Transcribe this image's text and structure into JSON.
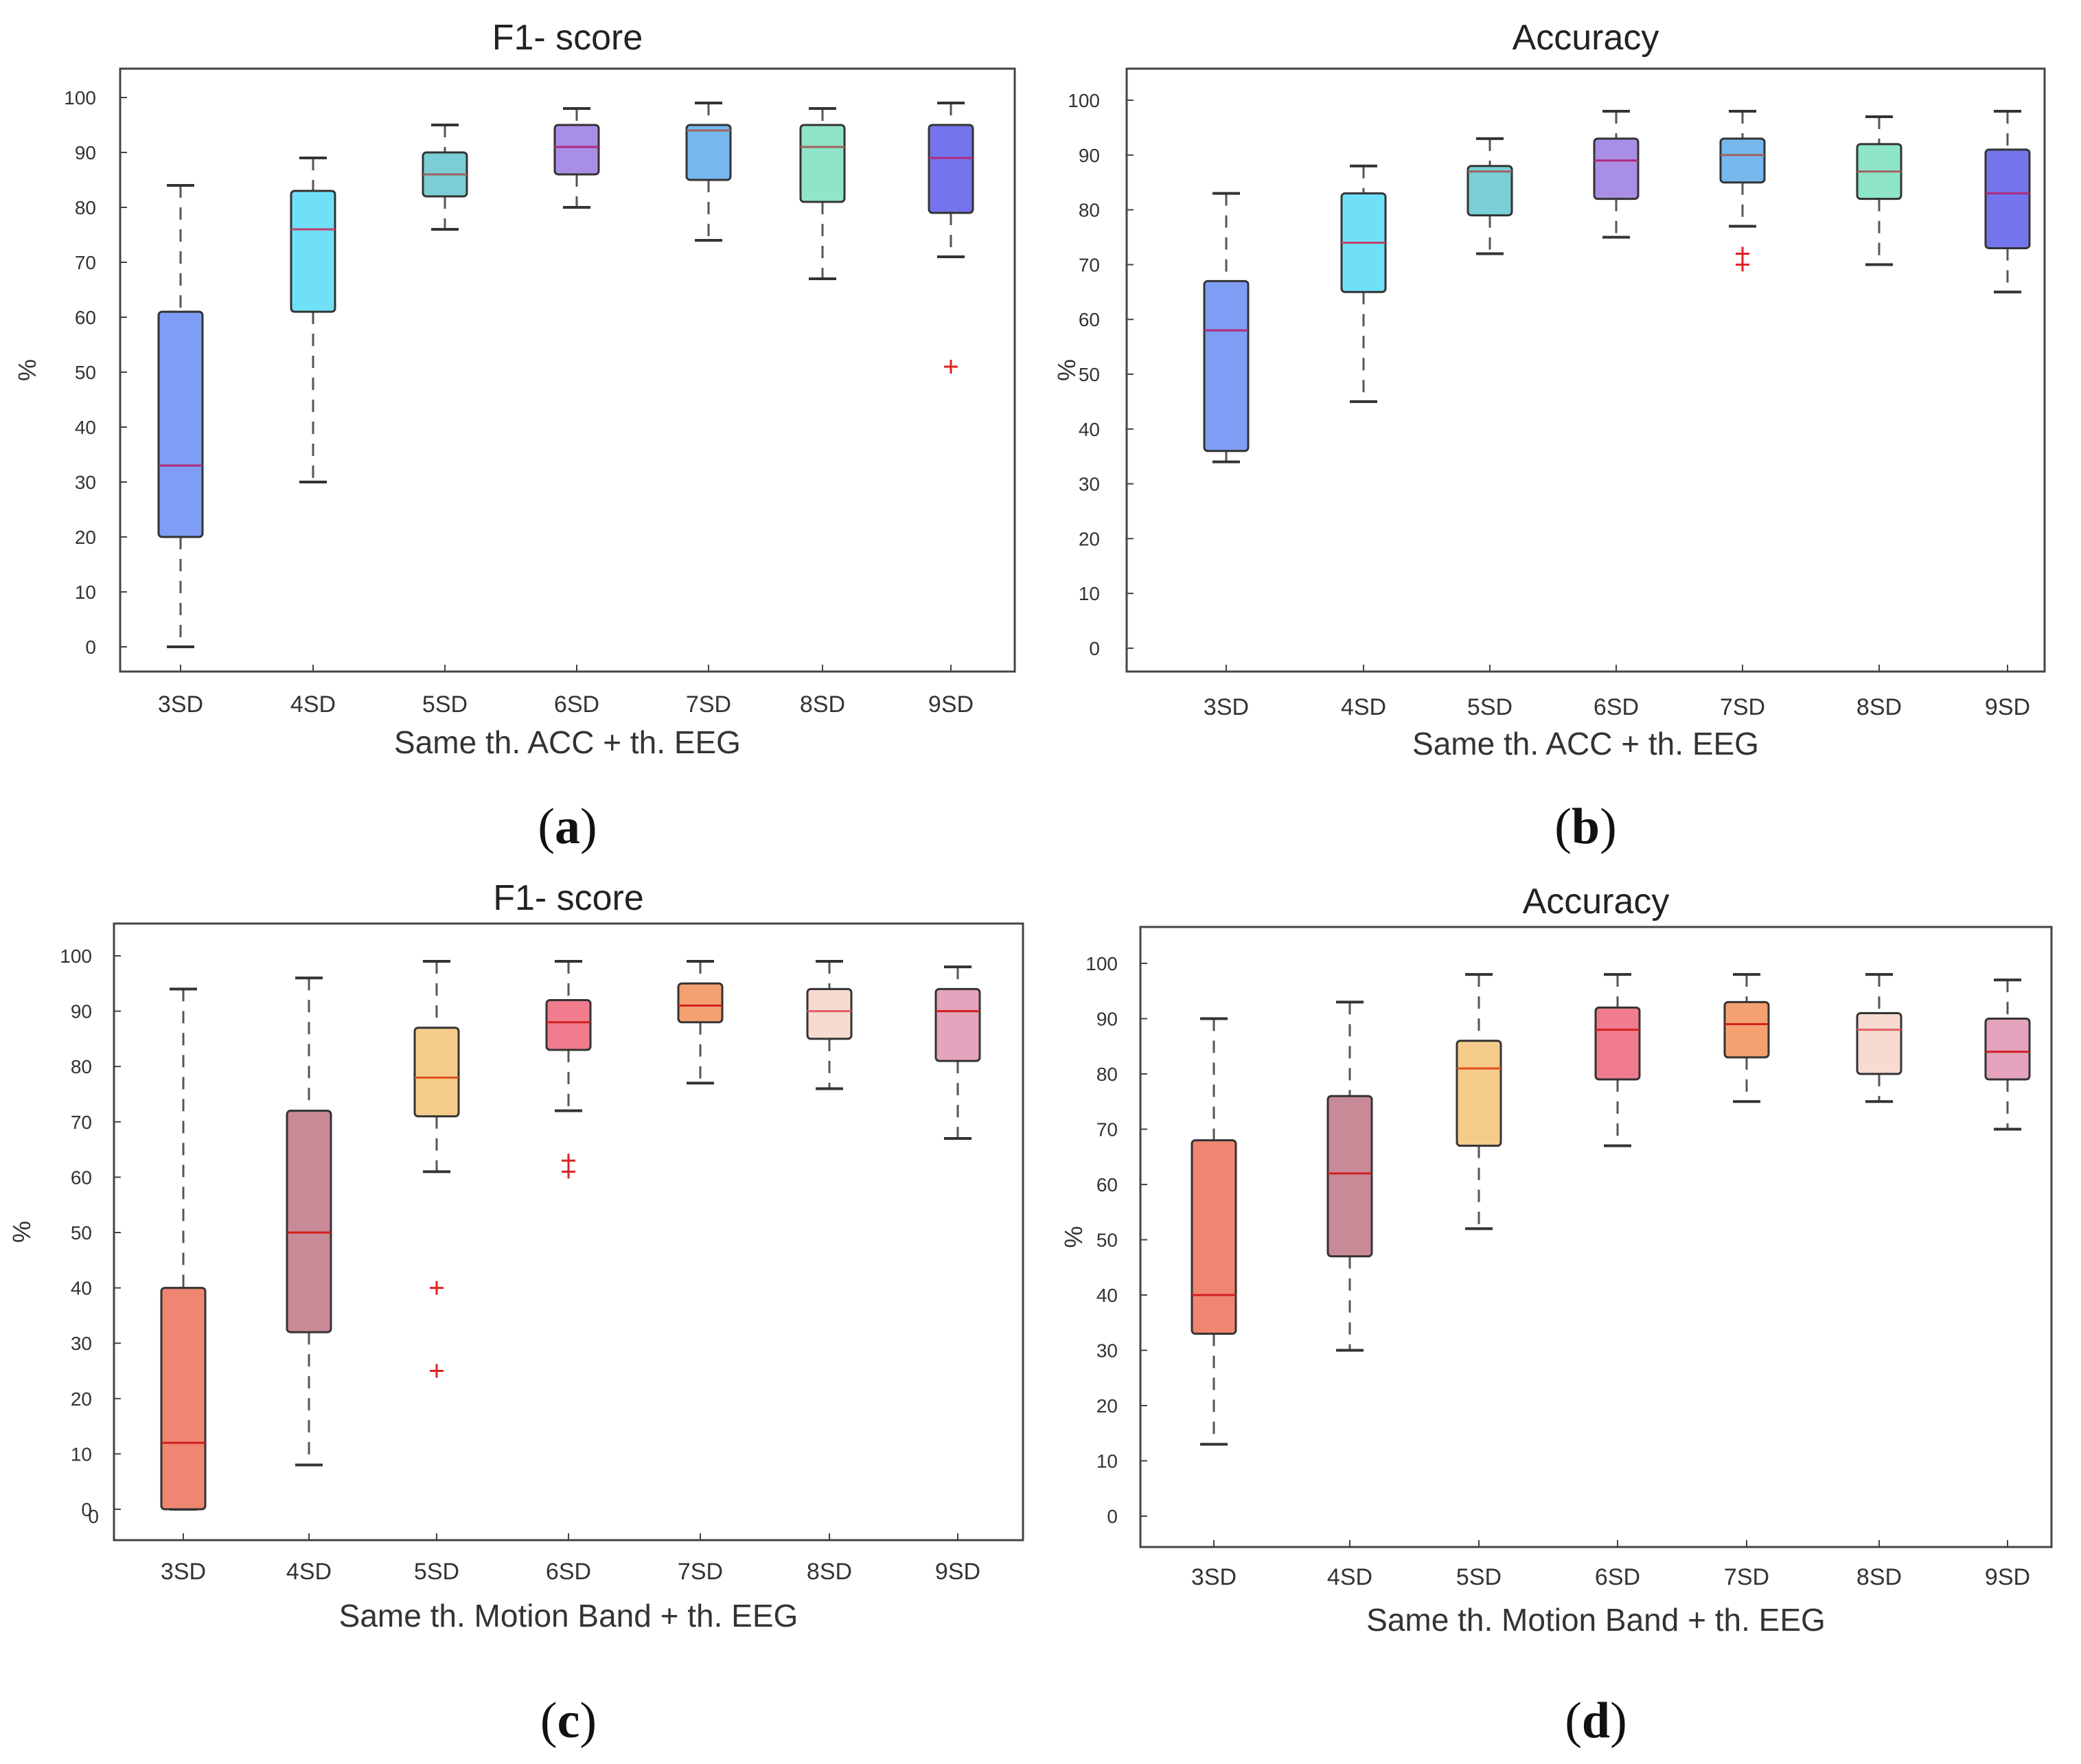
{
  "chart_data": [
    {
      "type": "box",
      "panel": "a",
      "title": "F1- score",
      "xlabel": "Same th. ACC + th. EEG",
      "ylabel": "%",
      "ylim": [
        -4,
        104
      ],
      "yticks": [
        0,
        10,
        20,
        30,
        40,
        50,
        60,
        70,
        80,
        90,
        100
      ],
      "categories": [
        "3SD",
        "4SD",
        "5SD",
        "6SD",
        "7SD",
        "8SD",
        "9SD"
      ],
      "boxes": [
        {
          "min": 0,
          "q1": 20,
          "median": 33,
          "q3": 61,
          "max": 84,
          "outliers": [],
          "color": "#7f9df5",
          "median_color": "#b02a7a"
        },
        {
          "min": 30,
          "q1": 61,
          "median": 76,
          "q3": 83,
          "max": 89,
          "outliers": [],
          "color": "#6fe0f7",
          "median_color": "#c1406a"
        },
        {
          "min": 76,
          "q1": 82,
          "median": 86,
          "q3": 90,
          "max": 95,
          "outliers": [],
          "color": "#79cfd5",
          "median_color": "#a06060"
        },
        {
          "min": 80,
          "q1": 86,
          "median": 91,
          "q3": 95,
          "max": 98,
          "outliers": [],
          "color": "#a98ee6",
          "median_color": "#b02a7a"
        },
        {
          "min": 74,
          "q1": 85,
          "median": 94,
          "q3": 95,
          "max": 99,
          "outliers": [],
          "color": "#76b7ee",
          "median_color": "#a06060"
        },
        {
          "min": 67,
          "q1": 81,
          "median": 91,
          "q3": 95,
          "max": 98,
          "outliers": [],
          "color": "#8fe5c7",
          "median_color": "#a06060"
        },
        {
          "min": 71,
          "q1": 79,
          "median": 89,
          "q3": 95,
          "max": 99,
          "outliers": [
            51
          ],
          "color": "#7474ec",
          "median_color": "#b02a7a"
        }
      ]
    },
    {
      "type": "box",
      "panel": "b",
      "title": "Accuracy",
      "xlabel": "Same th. ACC + th. EEG",
      "ylabel": "%",
      "ylim": [
        -4,
        104
      ],
      "yticks": [
        0,
        10,
        20,
        30,
        40,
        50,
        60,
        70,
        80,
        90,
        100
      ],
      "categories": [
        "3SD",
        "4SD",
        "5SD",
        "6SD",
        "7SD",
        "8SD",
        "9SD"
      ],
      "boxes": [
        {
          "min": 34,
          "q1": 36,
          "median": 58,
          "q3": 67,
          "max": 83,
          "outliers": [],
          "color": "#7f9df5",
          "median_color": "#b02a7a"
        },
        {
          "min": 45,
          "q1": 65,
          "median": 74,
          "q3": 83,
          "max": 88,
          "outliers": [],
          "color": "#6fe0f7",
          "median_color": "#c1406a"
        },
        {
          "min": 72,
          "q1": 79,
          "median": 87,
          "q3": 88,
          "max": 93,
          "outliers": [],
          "color": "#79cfd5",
          "median_color": "#a06060"
        },
        {
          "min": 75,
          "q1": 82,
          "median": 89,
          "q3": 93,
          "max": 98,
          "outliers": [],
          "color": "#a98ee6",
          "median_color": "#b02a7a"
        },
        {
          "min": 77,
          "q1": 85,
          "median": 90,
          "q3": 93,
          "max": 98,
          "outliers": [
            72,
            70
          ],
          "color": "#76b7ee",
          "median_color": "#a06060"
        },
        {
          "min": 70,
          "q1": 82,
          "median": 87,
          "q3": 92,
          "max": 97,
          "outliers": [],
          "color": "#8fe5c7",
          "median_color": "#a06060"
        },
        {
          "min": 65,
          "q1": 73,
          "median": 83,
          "q3": 91,
          "max": 98,
          "outliers": [],
          "color": "#7474ec",
          "median_color": "#b02a7a"
        }
      ]
    },
    {
      "type": "box",
      "panel": "c",
      "title": "F1- score",
      "xlabel": "Same th. Motion Band + th. EEG",
      "ylabel": "%",
      "ylim": [
        -5,
        104
      ],
      "yticks": [
        0,
        10,
        20,
        30,
        40,
        50,
        60,
        70,
        80,
        90,
        100
      ],
      "categories": [
        "3SD",
        "4SD",
        "5SD",
        "6SD",
        "7SD",
        "8SD",
        "9SD"
      ],
      "boxes": [
        {
          "min": 0,
          "q1": 0,
          "median": 12,
          "q3": 40,
          "max": 94,
          "outliers": [],
          "color": "#ef8672",
          "median_color": "#d02020"
        },
        {
          "min": 8,
          "q1": 32,
          "median": 50,
          "q3": 72,
          "max": 96,
          "outliers": [],
          "color": "#c98a97",
          "median_color": "#d02020"
        },
        {
          "min": 61,
          "q1": 71,
          "median": 78,
          "q3": 87,
          "max": 99,
          "outliers": [
            40,
            25
          ],
          "color": "#f5cc8a",
          "median_color": "#e05020"
        },
        {
          "min": 72,
          "q1": 83,
          "median": 88,
          "q3": 92,
          "max": 99,
          "outliers": [
            63,
            61
          ],
          "color": "#f07c8e",
          "median_color": "#d02020"
        },
        {
          "min": 77,
          "q1": 88,
          "median": 91,
          "q3": 95,
          "max": 99,
          "outliers": [],
          "color": "#f5a070",
          "median_color": "#d02020"
        },
        {
          "min": 76,
          "q1": 85,
          "median": 90,
          "q3": 94,
          "max": 99,
          "outliers": [],
          "color": "#f7dbd0",
          "median_color": "#e06060"
        },
        {
          "min": 67,
          "q1": 81,
          "median": 90,
          "q3": 94,
          "max": 98,
          "outliers": [],
          "color": "#e6a3bd",
          "median_color": "#d02020"
        }
      ],
      "stray_text": "0"
    },
    {
      "type": "box",
      "panel": "d",
      "title": "Accuracy",
      "xlabel": "Same th. Motion Band + th. EEG",
      "ylabel": "%",
      "ylim": [
        -4,
        104
      ],
      "yticks": [
        0,
        10,
        20,
        30,
        40,
        50,
        60,
        70,
        80,
        90,
        100
      ],
      "categories": [
        "3SD",
        "4SD",
        "5SD",
        "6SD",
        "7SD",
        "8SD",
        "9SD"
      ],
      "boxes": [
        {
          "min": 13,
          "q1": 33,
          "median": 40,
          "q3": 68,
          "max": 90,
          "outliers": [],
          "color": "#ef8672",
          "median_color": "#d02020"
        },
        {
          "min": 30,
          "q1": 47,
          "median": 62,
          "q3": 76,
          "max": 93,
          "outliers": [],
          "color": "#c98a97",
          "median_color": "#d02020"
        },
        {
          "min": 52,
          "q1": 67,
          "median": 81,
          "q3": 86,
          "max": 98,
          "outliers": [],
          "color": "#f5cc8a",
          "median_color": "#e05020"
        },
        {
          "min": 67,
          "q1": 79,
          "median": 88,
          "q3": 92,
          "max": 98,
          "outliers": [],
          "color": "#f07c8e",
          "median_color": "#d02020"
        },
        {
          "min": 75,
          "q1": 83,
          "median": 89,
          "q3": 93,
          "max": 98,
          "outliers": [],
          "color": "#f5a070",
          "median_color": "#d02020"
        },
        {
          "min": 75,
          "q1": 80,
          "median": 88,
          "q3": 91,
          "max": 98,
          "outliers": [],
          "color": "#f7dbd0",
          "median_color": "#e06060"
        },
        {
          "min": 70,
          "q1": 79,
          "median": 84,
          "q3": 90,
          "max": 97,
          "outliers": [],
          "color": "#e6a3bd",
          "median_color": "#d02020"
        }
      ]
    }
  ],
  "panel_labels": [
    {
      "open": "(",
      "letter": "a",
      "close": ")"
    },
    {
      "open": "(",
      "letter": "b",
      "close": ")"
    },
    {
      "open": "(",
      "letter": "c",
      "close": ")"
    },
    {
      "open": "(",
      "letter": "d",
      "close": ")"
    }
  ]
}
